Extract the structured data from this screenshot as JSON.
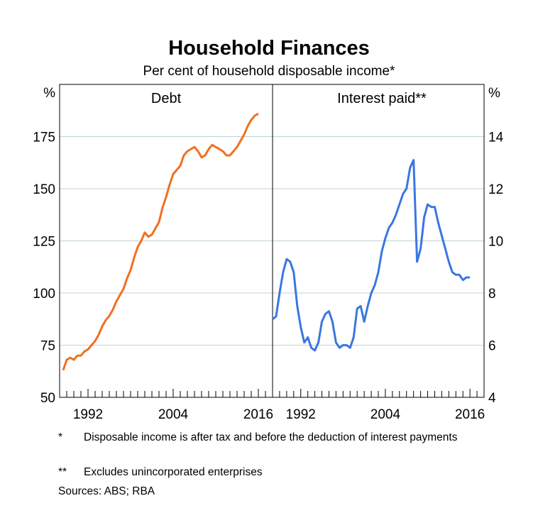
{
  "title": "Household Finances",
  "subtitle": "Per cent of household disposable income*",
  "footnotes": [
    {
      "mark": "*",
      "text": "Disposable income is after tax and before the deduction of interest payments"
    },
    {
      "mark": "**",
      "text": "Excludes unincorporated enterprises"
    }
  ],
  "sources": "Sources:  ABS; RBA",
  "chart_data": [
    {
      "type": "line",
      "panel_title": "Debt",
      "axis_side": "left",
      "y_unit": "%",
      "ylim": [
        50,
        200
      ],
      "yticks": [
        50,
        75,
        100,
        125,
        150,
        175
      ],
      "xlim": [
        1988,
        2018
      ],
      "xticks": [
        1992,
        2004,
        2016
      ],
      "grid": true,
      "color": "#f07020",
      "series": [
        {
          "x": [
            1988.5,
            1989.0,
            1989.5,
            1990.0,
            1990.5,
            1991.0,
            1991.5,
            1992.0,
            1992.5,
            1993.0,
            1993.5,
            1994.0,
            1994.5,
            1995.0,
            1995.5,
            1996.0,
            1996.5,
            1997.0,
            1997.5,
            1998.0,
            1998.5,
            1999.0,
            1999.5,
            2000.0,
            2000.5,
            2001.0,
            2001.5,
            2002.0,
            2002.5,
            2003.0,
            2003.5,
            2004.0,
            2004.5,
            2005.0,
            2005.5,
            2006.0,
            2006.5,
            2007.0,
            2007.5,
            2008.0,
            2008.5,
            2009.0,
            2009.5,
            2010.0,
            2010.5,
            2011.0,
            2011.5,
            2012.0,
            2012.5,
            2013.0,
            2013.5,
            2014.0,
            2014.5,
            2015.0,
            2015.5,
            2016.0
          ],
          "y": [
            63,
            68,
            69,
            68,
            70,
            70,
            72,
            73,
            75,
            77,
            80,
            84,
            87,
            89,
            92,
            96,
            99,
            102,
            107,
            111,
            117,
            122,
            125,
            129,
            127,
            128,
            131,
            134,
            141,
            146,
            152,
            157,
            159,
            161,
            166,
            168,
            169,
            170,
            168,
            165,
            166,
            169,
            171,
            170,
            169,
            168,
            166,
            166,
            168,
            170,
            173,
            176,
            180,
            183,
            185,
            186
          ]
        }
      ]
    },
    {
      "type": "line",
      "panel_title": "Interest paid**",
      "axis_side": "right",
      "y_unit": "%",
      "ylim": [
        4,
        16
      ],
      "yticks": [
        4,
        6,
        8,
        10,
        12,
        14
      ],
      "xlim": [
        1988,
        2018
      ],
      "xticks": [
        1992,
        2004,
        2016
      ],
      "grid": true,
      "color": "#3a76e0",
      "series": [
        {
          "x": [
            1988.0,
            1988.5,
            1989.0,
            1989.5,
            1990.0,
            1990.5,
            1991.0,
            1991.5,
            1992.0,
            1992.5,
            1993.0,
            1993.5,
            1994.0,
            1994.5,
            1995.0,
            1995.5,
            1996.0,
            1996.5,
            1997.0,
            1997.5,
            1998.0,
            1998.5,
            1999.0,
            1999.5,
            2000.0,
            2000.5,
            2001.0,
            2001.5,
            2002.0,
            2002.5,
            2003.0,
            2003.5,
            2004.0,
            2004.5,
            2005.0,
            2005.5,
            2006.0,
            2006.5,
            2007.0,
            2007.5,
            2008.0,
            2008.5,
            2009.0,
            2009.5,
            2010.0,
            2010.5,
            2011.0,
            2011.5,
            2012.0,
            2012.5,
            2013.0,
            2013.5,
            2014.0,
            2014.5,
            2015.0,
            2015.5,
            2016.0
          ],
          "y": [
            7.0,
            7.1,
            8.0,
            8.8,
            9.3,
            9.2,
            8.8,
            7.5,
            6.7,
            6.1,
            6.3,
            5.9,
            5.8,
            6.1,
            6.9,
            7.2,
            7.3,
            6.9,
            6.1,
            5.9,
            6.0,
            6.0,
            5.9,
            6.3,
            7.4,
            7.5,
            6.9,
            7.5,
            8.0,
            8.3,
            8.8,
            9.6,
            10.1,
            10.5,
            10.7,
            11.0,
            11.4,
            11.8,
            12.0,
            12.8,
            13.1,
            9.2,
            9.7,
            10.9,
            11.4,
            11.3,
            11.3,
            10.7,
            10.2,
            9.7,
            9.2,
            8.8,
            8.7,
            8.7,
            8.5,
            8.6,
            8.6
          ]
        }
      ]
    }
  ]
}
